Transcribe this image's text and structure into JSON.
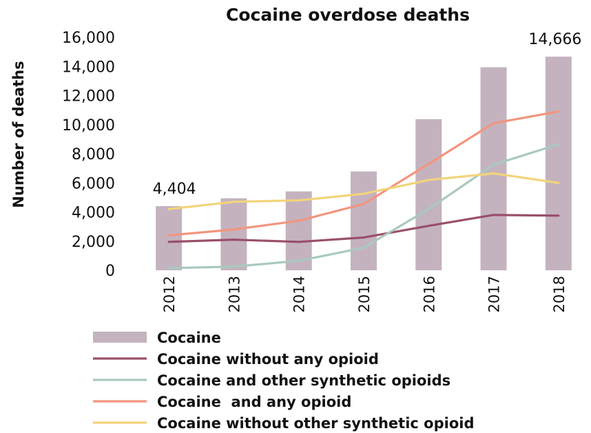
{
  "chart_data": {
    "type": "bar",
    "title": "Cocaine overdose deaths",
    "ylabel": "Number of deaths",
    "xlabel": "",
    "ylim": [
      0,
      16000
    ],
    "yticks": [
      0,
      2000,
      4000,
      6000,
      8000,
      10000,
      12000,
      14000,
      16000
    ],
    "ytick_labels": [
      "0",
      "2,000",
      "4,000",
      "6,000",
      "8,000",
      "10,000",
      "12,000",
      "14,000",
      "16,000"
    ],
    "categories": [
      "2012",
      "2013",
      "2014",
      "2015",
      "2016",
      "2017",
      "2018"
    ],
    "grid": false,
    "legend_position": "bottom",
    "bar_series": {
      "name": "Cocaine",
      "color": "#c4b3bf",
      "values": [
        4404,
        4944,
        5415,
        6784,
        10375,
        13942,
        14666
      ]
    },
    "line_series": [
      {
        "name": "Cocaine without any opioid",
        "color": "#9a4f6b",
        "values": [
          1950,
          2100,
          1950,
          2250,
          3050,
          3800,
          3750
        ]
      },
      {
        "name": "Cocaine and other synthetic opioids",
        "color": "#a9c9c0",
        "values": [
          150,
          250,
          650,
          1550,
          4200,
          7250,
          8650
        ]
      },
      {
        "name": "Cocaine  and any opioid",
        "color": "#f2957f",
        "values": [
          2400,
          2800,
          3400,
          4550,
          7300,
          10100,
          10900
        ]
      },
      {
        "name": "Cocaine without other synthetic opioid",
        "color": "#f2d47a",
        "values": [
          4200,
          4700,
          4800,
          5250,
          6200,
          6650,
          6000
        ]
      }
    ],
    "data_labels": [
      {
        "category": "2012",
        "text": "4,404"
      },
      {
        "category": "2018",
        "text": "14,666"
      }
    ]
  }
}
